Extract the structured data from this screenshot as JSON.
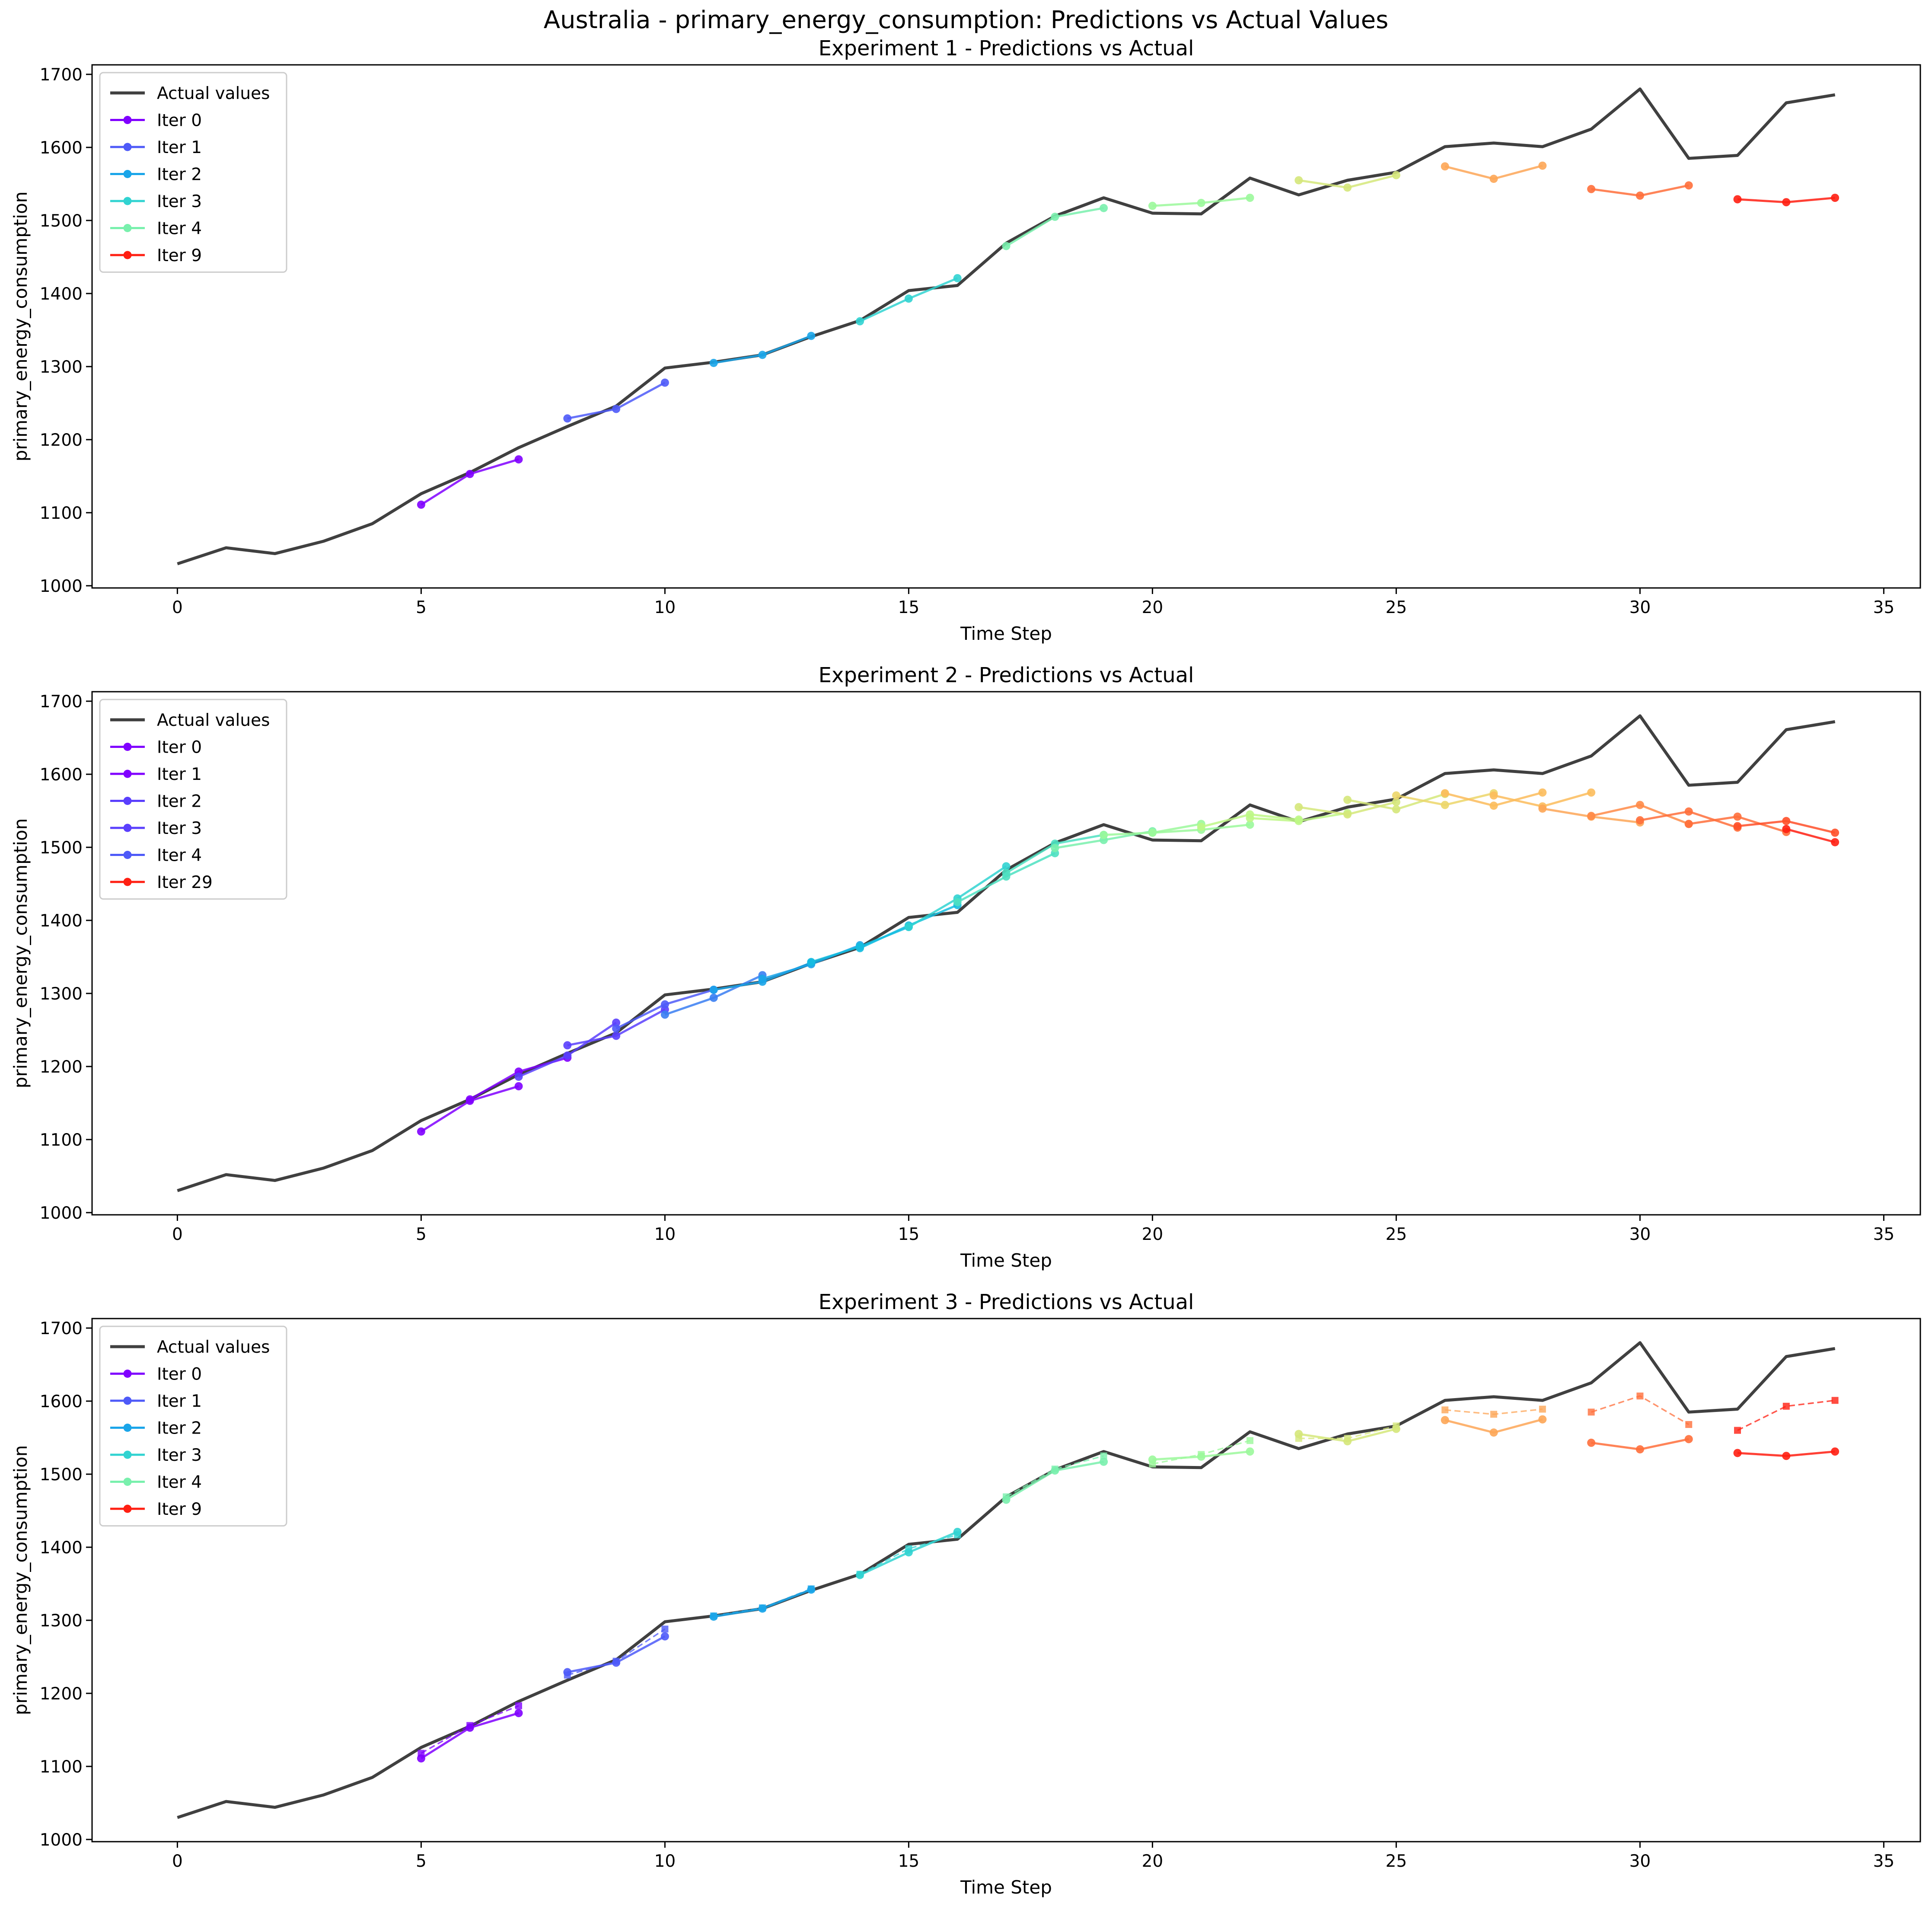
{
  "suptitle": "Australia - primary_energy_consumption: Predictions vs Actual Values",
  "colors": {
    "actual": "#404040",
    "iter_palette": [
      "#8000ff",
      "#5a3ffd",
      "#4e5af8",
      "#3a7ef2",
      "#1aa5e9",
      "#15bde0",
      "#31d3d1",
      "#4ce0c1",
      "#79f0ad",
      "#9bf89b",
      "#bef786",
      "#d5e77a",
      "#ecd66a",
      "#fcbc5c",
      "#fda657",
      "#ff8b48",
      "#ff6f3b",
      "#ff4f29",
      "#ff1f12"
    ]
  },
  "actual_values": {
    "x": [
      0,
      1,
      2,
      3,
      4,
      5,
      6,
      7,
      8,
      9,
      10,
      11,
      12,
      13,
      14,
      15,
      16,
      17,
      18,
      19,
      20,
      21,
      22,
      23,
      24,
      25,
      26,
      27,
      28,
      29,
      30,
      31,
      32,
      33,
      34
    ],
    "y": [
      1030,
      1052,
      1044,
      1061,
      1085,
      1126,
      1155,
      1189,
      1218,
      1246,
      1298,
      1306,
      1316,
      1341,
      1363,
      1404,
      1411,
      1469,
      1506,
      1531,
      1510,
      1509,
      1558,
      1535,
      1555,
      1566,
      1601,
      1606,
      1601,
      1625,
      1680,
      1585,
      1589,
      1661,
      1672
    ]
  },
  "chart_data": [
    {
      "type": "line",
      "title": "Experiment 1 - Predictions vs Actual",
      "xlabel": "Time Step",
      "ylabel": "primary_energy_consumption",
      "xlim": [
        -1.75,
        35.75
      ],
      "ylim": [
        997,
        1713
      ],
      "xticks": [
        0,
        5,
        10,
        15,
        20,
        25,
        30,
        35
      ],
      "yticks": [
        1000,
        1100,
        1200,
        1300,
        1400,
        1500,
        1600,
        1700
      ],
      "legend_position": "upper-left",
      "legend": [
        "Actual values",
        "Iter 0",
        "Iter 1",
        "Iter 2",
        "Iter 3",
        "Iter 4",
        "Iter 9"
      ],
      "series": [
        {
          "name": "Iter 0",
          "color_idx": 0,
          "x": [
            5,
            6,
            7
          ],
          "y": [
            1111,
            1153,
            1173
          ]
        },
        {
          "name": "Iter 1",
          "color_idx": 2,
          "x": [
            8,
            9,
            10
          ],
          "y": [
            1229,
            1242,
            1278
          ]
        },
        {
          "name": "Iter 2",
          "color_idx": 4,
          "x": [
            11,
            12,
            13
          ],
          "y": [
            1305,
            1316,
            1342
          ]
        },
        {
          "name": "Iter 3",
          "color_idx": 6,
          "x": [
            14,
            15,
            16
          ],
          "y": [
            1362,
            1393,
            1421
          ]
        },
        {
          "name": "Iter 4",
          "color_idx": 8,
          "x": [
            17,
            18,
            19
          ],
          "y": [
            1465,
            1505,
            1517
          ]
        },
        {
          "color_idx": 9,
          "x": [
            20,
            21,
            22
          ],
          "y": [
            1520,
            1524,
            1531
          ]
        },
        {
          "color_idx": 11,
          "x": [
            23,
            24,
            25
          ],
          "y": [
            1555,
            1545,
            1562
          ]
        },
        {
          "color_idx": 14,
          "x": [
            26,
            27,
            28
          ],
          "y": [
            1574,
            1557,
            1575
          ]
        },
        {
          "color_idx": 16,
          "x": [
            29,
            30,
            31
          ],
          "y": [
            1543,
            1534,
            1548
          ]
        },
        {
          "name": "Iter 9",
          "color_idx": 18,
          "x": [
            32,
            33,
            34
          ],
          "y": [
            1529,
            1525,
            1531
          ]
        }
      ]
    },
    {
      "type": "line",
      "title": "Experiment 2 - Predictions vs Actual",
      "xlabel": "Time Step",
      "ylabel": "primary_energy_consumption",
      "xlim": [
        -1.75,
        35.75
      ],
      "ylim": [
        997,
        1713
      ],
      "xticks": [
        0,
        5,
        10,
        15,
        20,
        25,
        30,
        35
      ],
      "yticks": [
        1000,
        1100,
        1200,
        1300,
        1400,
        1500,
        1600,
        1700
      ],
      "legend_position": "upper-left",
      "legend": [
        "Actual values",
        "Iter 0",
        "Iter 1",
        "Iter 2",
        "Iter 3",
        "Iter 4",
        "Iter 29"
      ],
      "series": [
        {
          "name": "Iter 0",
          "color_idx": 0,
          "x": [
            5,
            6,
            7
          ],
          "y": [
            1111,
            1153,
            1173
          ]
        },
        {
          "name": "Iter 1",
          "color_idx": 0,
          "x": [
            6,
            7,
            8
          ],
          "y": [
            1155,
            1193,
            1212
          ]
        },
        {
          "name": "Iter 2",
          "color_idx": 1,
          "x": [
            7,
            8,
            9
          ],
          "y": [
            1186,
            1215,
            1260
          ]
        },
        {
          "name": "Iter 3",
          "color_idx": 1,
          "x": [
            8,
            9,
            10
          ],
          "y": [
            1229,
            1242,
            1278
          ]
        },
        {
          "name": "Iter 4",
          "color_idx": 2,
          "x": [
            9,
            10,
            11
          ],
          "y": [
            1252,
            1285,
            1305
          ]
        },
        {
          "color_idx": 3,
          "x": [
            10,
            11,
            12
          ],
          "y": [
            1271,
            1294,
            1325
          ]
        },
        {
          "color_idx": 4,
          "x": [
            11,
            12,
            13
          ],
          "y": [
            1305,
            1316,
            1342
          ]
        },
        {
          "color_idx": 4,
          "x": [
            12,
            13,
            14
          ],
          "y": [
            1320,
            1340,
            1366
          ]
        },
        {
          "color_idx": 5,
          "x": [
            13,
            14,
            15
          ],
          "y": [
            1343,
            1364,
            1391
          ]
        },
        {
          "color_idx": 5,
          "x": [
            14,
            15,
            16
          ],
          "y": [
            1362,
            1393,
            1421
          ]
        },
        {
          "color_idx": 6,
          "x": [
            15,
            16,
            17
          ],
          "y": [
            1391,
            1430,
            1474
          ]
        },
        {
          "color_idx": 7,
          "x": [
            16,
            17,
            18
          ],
          "y": [
            1425,
            1460,
            1492
          ]
        },
        {
          "color_idx": 7,
          "x": [
            17,
            18,
            19
          ],
          "y": [
            1465,
            1505,
            1517
          ]
        },
        {
          "color_idx": 8,
          "x": [
            18,
            19,
            20
          ],
          "y": [
            1499,
            1510,
            1522
          ]
        },
        {
          "color_idx": 9,
          "x": [
            19,
            20,
            21
          ],
          "y": [
            1517,
            1520,
            1532
          ]
        },
        {
          "color_idx": 9,
          "x": [
            20,
            21,
            22
          ],
          "y": [
            1520,
            1524,
            1531
          ]
        },
        {
          "color_idx": 10,
          "x": [
            21,
            22,
            23
          ],
          "y": [
            1528,
            1545,
            1538
          ]
        },
        {
          "color_idx": 10,
          "x": [
            22,
            23,
            24
          ],
          "y": [
            1540,
            1536,
            1547
          ]
        },
        {
          "color_idx": 11,
          "x": [
            23,
            24,
            25
          ],
          "y": [
            1555,
            1545,
            1562
          ]
        },
        {
          "color_idx": 11,
          "x": [
            24,
            25,
            26
          ],
          "y": [
            1565,
            1552,
            1573
          ]
        },
        {
          "color_idx": 12,
          "x": [
            25,
            26,
            27
          ],
          "y": [
            1571,
            1558,
            1574
          ]
        },
        {
          "color_idx": 13,
          "x": [
            26,
            27,
            28
          ],
          "y": [
            1574,
            1557,
            1575
          ]
        },
        {
          "color_idx": 13,
          "x": [
            27,
            28,
            29
          ],
          "y": [
            1571,
            1556,
            1575
          ]
        },
        {
          "color_idx": 14,
          "x": [
            28,
            29,
            30
          ],
          "y": [
            1553,
            1542,
            1534
          ]
        },
        {
          "color_idx": 15,
          "x": [
            29,
            30,
            31
          ],
          "y": [
            1543,
            1558,
            1532
          ]
        },
        {
          "color_idx": 16,
          "x": [
            30,
            31,
            32
          ],
          "y": [
            1537,
            1549,
            1527
          ]
        },
        {
          "color_idx": 16,
          "x": [
            31,
            32,
            33
          ],
          "y": [
            1532,
            1542,
            1521
          ]
        },
        {
          "color_idx": 17,
          "x": [
            32,
            33,
            34
          ],
          "y": [
            1529,
            1536,
            1520
          ]
        },
        {
          "name": "Iter 29",
          "color_idx": 18,
          "x": [
            33,
            34
          ],
          "y": [
            1525,
            1507
          ]
        }
      ]
    },
    {
      "type": "line",
      "title": "Experiment 3 - Predictions vs Actual",
      "xlabel": "Time Step",
      "ylabel": "primary_energy_consumption",
      "xlim": [
        -1.75,
        35.75
      ],
      "ylim": [
        997,
        1713
      ],
      "xticks": [
        0,
        5,
        10,
        15,
        20,
        25,
        30,
        35
      ],
      "yticks": [
        1000,
        1100,
        1200,
        1300,
        1400,
        1500,
        1600,
        1700
      ],
      "legend_position": "upper-left",
      "legend": [
        "Actual values",
        "Iter 0",
        "Iter 1",
        "Iter 2",
        "Iter 3",
        "Iter 4",
        "Iter 9"
      ],
      "series": [
        {
          "color_idx": 0,
          "dashed": true,
          "marker": "square",
          "x": [
            5,
            6,
            7
          ],
          "y": [
            1118,
            1156,
            1183
          ]
        },
        {
          "color_idx": 2,
          "dashed": true,
          "marker": "square",
          "x": [
            8,
            9,
            10
          ],
          "y": [
            1225,
            1244,
            1288
          ]
        },
        {
          "color_idx": 4,
          "dashed": true,
          "marker": "square",
          "x": [
            11,
            12,
            13
          ],
          "y": [
            1306,
            1317,
            1343
          ]
        },
        {
          "color_idx": 6,
          "dashed": true,
          "marker": "square",
          "x": [
            14,
            15,
            16
          ],
          "y": [
            1363,
            1398,
            1417
          ]
        },
        {
          "color_idx": 8,
          "dashed": true,
          "marker": "square",
          "x": [
            17,
            18,
            19
          ],
          "y": [
            1469,
            1507,
            1525
          ]
        },
        {
          "color_idx": 9,
          "dashed": true,
          "marker": "square",
          "x": [
            20,
            21,
            22
          ],
          "y": [
            1514,
            1527,
            1546
          ]
        },
        {
          "color_idx": 11,
          "dashed": true,
          "marker": "square",
          "x": [
            23,
            24,
            25
          ],
          "y": [
            1549,
            1549,
            1566
          ]
        },
        {
          "color_idx": 14,
          "dashed": true,
          "marker": "square",
          "x": [
            26,
            27,
            28
          ],
          "y": [
            1588,
            1582,
            1589
          ]
        },
        {
          "color_idx": 16,
          "dashed": true,
          "marker": "square",
          "x": [
            29,
            30,
            31
          ],
          "y": [
            1585,
            1607,
            1568
          ]
        },
        {
          "color_idx": 18,
          "dashed": true,
          "marker": "square",
          "x": [
            32,
            33,
            34
          ],
          "y": [
            1560,
            1593,
            1601
          ]
        },
        {
          "name": "Iter 0",
          "color_idx": 0,
          "x": [
            5,
            6,
            7
          ],
          "y": [
            1111,
            1153,
            1173
          ]
        },
        {
          "name": "Iter 1",
          "color_idx": 2,
          "x": [
            8,
            9,
            10
          ],
          "y": [
            1229,
            1242,
            1278
          ]
        },
        {
          "name": "Iter 2",
          "color_idx": 4,
          "x": [
            11,
            12,
            13
          ],
          "y": [
            1305,
            1316,
            1342
          ]
        },
        {
          "name": "Iter 3",
          "color_idx": 6,
          "x": [
            14,
            15,
            16
          ],
          "y": [
            1362,
            1393,
            1421
          ]
        },
        {
          "name": "Iter 4",
          "color_idx": 8,
          "x": [
            17,
            18,
            19
          ],
          "y": [
            1465,
            1505,
            1517
          ]
        },
        {
          "color_idx": 9,
          "x": [
            20,
            21,
            22
          ],
          "y": [
            1520,
            1524,
            1531
          ]
        },
        {
          "color_idx": 11,
          "x": [
            23,
            24,
            25
          ],
          "y": [
            1555,
            1545,
            1562
          ]
        },
        {
          "color_idx": 14,
          "x": [
            26,
            27,
            28
          ],
          "y": [
            1574,
            1557,
            1575
          ]
        },
        {
          "color_idx": 16,
          "x": [
            29,
            30,
            31
          ],
          "y": [
            1543,
            1534,
            1548
          ]
        },
        {
          "name": "Iter 9",
          "color_idx": 18,
          "x": [
            32,
            33,
            34
          ],
          "y": [
            1529,
            1525,
            1531
          ]
        }
      ]
    }
  ]
}
